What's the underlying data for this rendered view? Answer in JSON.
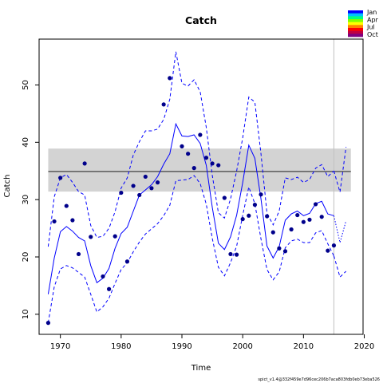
{
  "chart_data": {
    "type": "line",
    "title": "Catch",
    "xlabel": "Time",
    "ylabel": "Catch",
    "xlim": [
      1966.5,
      2019.8
    ],
    "ylim": [
      6.5,
      58
    ],
    "xticks": [
      1970,
      1980,
      1990,
      2000,
      2010,
      2020
    ],
    "yticks": [
      10,
      20,
      30,
      40,
      50
    ],
    "grid": false,
    "legend": {
      "position": "top-right",
      "entries": [
        "Jan",
        "Apr",
        "Jul",
        "Oct"
      ],
      "gradient": [
        "#0000ff",
        "#00bfff",
        "#00ff80",
        "#80ff00",
        "#ffff00",
        "#ff8000",
        "#ff0000",
        "#c00040",
        "#800080"
      ]
    },
    "observed": {
      "color": "#00008b",
      "x": [
        1968,
        1969,
        1970,
        1971,
        1972,
        1973,
        1974,
        1975,
        1977,
        1978,
        1979,
        1980,
        1981,
        1982,
        1983,
        1984,
        1985,
        1986,
        1987,
        1988,
        1990,
        1991,
        1992,
        1993,
        1994,
        1995,
        1996,
        1997,
        1998,
        1999,
        2000,
        2001,
        2002,
        2003,
        2004,
        2005,
        2006,
        2007,
        2008,
        2009,
        2010,
        2011,
        2012,
        2013,
        2014,
        2015
      ],
      "y": [
        8.5,
        26.2,
        33.8,
        28.9,
        26.4,
        20.5,
        36.3,
        23.5,
        16.6,
        14.4,
        23.6,
        31.2,
        19.2,
        32.4,
        30.8,
        34,
        32,
        33,
        46.6,
        51.2,
        39.3,
        38,
        35.5,
        41.3,
        37.3,
        36.3,
        36,
        30.3,
        20.5,
        20.4,
        26.6,
        27.2,
        29.1,
        30.9,
        27.1,
        24.3,
        21.5,
        21,
        24.8,
        27.3,
        26.1,
        26.5,
        29.2,
        27,
        21.1,
        22
      ]
    },
    "series": [
      {
        "role": "estimate",
        "color": "#0000ff",
        "style": "solid",
        "x": [
          1968,
          1969,
          1970,
          1971,
          1972,
          1973,
          1974,
          1975,
          1976,
          1977,
          1978,
          1979,
          1980,
          1981,
          1982,
          1983,
          1984,
          1985,
          1986,
          1987,
          1988,
          1989,
          1990,
          1991,
          1992,
          1993,
          1994,
          1995,
          1996,
          1997,
          1998,
          1999,
          2000,
          2001,
          2002,
          2003,
          2004,
          2005,
          2006,
          2007,
          2008,
          2009,
          2010,
          2011,
          2012,
          2013,
          2014,
          2015
        ],
        "y": [
          13.5,
          19.8,
          24.4,
          25.3,
          24.5,
          23.4,
          22.8,
          18.5,
          15.5,
          16.3,
          18,
          21.5,
          24.1,
          25.2,
          28,
          30.8,
          31.7,
          32.6,
          34,
          36.2,
          38,
          43.2,
          41.1,
          41,
          41.3,
          39.8,
          36,
          28.6,
          22.4,
          21.3,
          23.5,
          27.3,
          33,
          39.5,
          37.2,
          30.2,
          21.9,
          19.8,
          21.8,
          26.4,
          27.5,
          28,
          27.2,
          27.6,
          29.3,
          29.7,
          27.5,
          27.2
        ]
      },
      {
        "role": "upper",
        "color": "#0000ff",
        "style": "dashed",
        "x": [
          1968,
          1969,
          1970,
          1971,
          1972,
          1973,
          1974,
          1975,
          1976,
          1977,
          1978,
          1979,
          1980,
          1981,
          1982,
          1983,
          1984,
          1985,
          1986,
          1987,
          1988,
          1989,
          1990,
          1991,
          1992,
          1993,
          1994,
          1995,
          1996,
          1997,
          1998,
          1999,
          2000,
          2001,
          2002,
          2003,
          2004,
          2005,
          2006,
          2007,
          2008,
          2009,
          2010,
          2011,
          2012,
          2013,
          2014,
          2015
        ],
        "y": [
          21.8,
          30.5,
          33.8,
          34.4,
          33,
          31.4,
          30.8,
          25.5,
          23.4,
          23.6,
          25,
          27.9,
          32,
          33.8,
          37.8,
          40.1,
          42,
          42,
          42.3,
          44,
          47.5,
          55.8,
          50.3,
          49.8,
          50.9,
          48.8,
          42.6,
          34.2,
          27.7,
          26.8,
          30.1,
          35,
          40.8,
          47.9,
          47,
          38.1,
          27.6,
          25.6,
          28,
          33.8,
          33.5,
          33.9,
          33,
          33.5,
          35.5,
          36.1,
          34,
          35
        ]
      },
      {
        "role": "lower",
        "color": "#0000ff",
        "style": "dashed",
        "x": [
          1968,
          1969,
          1970,
          1971,
          1972,
          1973,
          1974,
          1975,
          1976,
          1977,
          1978,
          1979,
          1980,
          1981,
          1982,
          1983,
          1984,
          1985,
          1986,
          1987,
          1988,
          1989,
          1990,
          1991,
          1992,
          1993,
          1994,
          1995,
          1996,
          1997,
          1998,
          1999,
          2000,
          2001,
          2002,
          2003,
          2004,
          2005,
          2006,
          2007,
          2008,
          2009,
          2010,
          2011,
          2012,
          2013,
          2014,
          2015
        ],
        "y": [
          8.5,
          14.8,
          17.9,
          18.5,
          18.1,
          17.3,
          16.5,
          13.5,
          10.4,
          11.3,
          12.8,
          15.4,
          17.8,
          19,
          20.9,
          22.6,
          24,
          24.9,
          25.8,
          27.2,
          29,
          33.3,
          33.4,
          33.5,
          34.2,
          32.8,
          29.2,
          23.2,
          18.2,
          16.7,
          19,
          21.9,
          27.3,
          32.2,
          29.3,
          23.2,
          17.8,
          16,
          17.4,
          21.6,
          22.8,
          23.1,
          22.5,
          22.5,
          24.2,
          24.6,
          22.3,
          20.2
        ]
      },
      {
        "role": "forecast",
        "color": "#0000ff",
        "style": "dotted",
        "x": [
          2015,
          2016,
          2017
        ],
        "y": [
          27.2,
          22.5,
          26.3
        ]
      },
      {
        "role": "forecast-upper",
        "color": "#0000ff",
        "style": "dashed",
        "x": [
          2015,
          2016,
          2017
        ],
        "y": [
          35,
          31.3,
          39.2
        ]
      },
      {
        "role": "forecast-lower",
        "color": "#0000ff",
        "style": "dashed",
        "x": [
          2015,
          2016,
          2017
        ],
        "y": [
          20.2,
          16.5,
          17.5
        ]
      }
    ],
    "msy_band": {
      "fill": "#d3d3d3",
      "x": [
        1968,
        2017.8
      ],
      "y": [
        31.4,
        38.9
      ],
      "line": 34.9
    },
    "vline": {
      "x": 2015,
      "color": "#c0c0c0"
    }
  },
  "footer": "spict_v1.4@332f459e7d96cec206b7aca803fdb0eb73eba526"
}
